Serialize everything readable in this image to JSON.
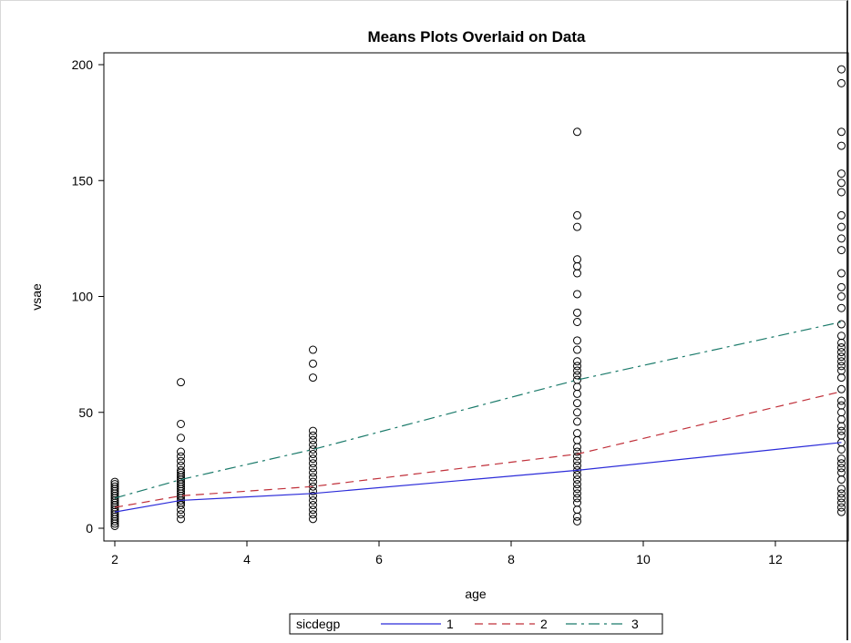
{
  "chart_data": {
    "type": "scatter",
    "title": "Means Plots Overlaid on Data",
    "xlabel": "age",
    "ylabel": "vsae",
    "xlim": [
      1.8,
      13.2
    ],
    "ylim": [
      -5,
      205
    ],
    "xticks": [
      2,
      4,
      6,
      8,
      10,
      12
    ],
    "yticks": [
      0,
      50,
      100,
      150,
      200
    ],
    "grid": false,
    "legend": {
      "title": "sicdegp",
      "placement": "bottom",
      "entries": [
        "1",
        "2",
        "3"
      ]
    },
    "observations": [
      {
        "x": 2,
        "y": [
          1,
          2,
          3,
          4,
          5,
          6,
          7,
          8,
          9,
          10,
          11,
          12,
          13,
          14,
          15,
          16,
          17,
          18,
          19,
          20
        ]
      },
      {
        "x": 3,
        "y": [
          4,
          6,
          8,
          10,
          11,
          12,
          13,
          14,
          15,
          16,
          17,
          18,
          19,
          20,
          21,
          22,
          23,
          24,
          25,
          27,
          29,
          31,
          33,
          39,
          45,
          63
        ]
      },
      {
        "x": 5,
        "y": [
          4,
          6,
          8,
          10,
          12,
          14,
          16,
          18,
          20,
          22,
          24,
          26,
          28,
          30,
          32,
          34,
          36,
          38,
          40,
          42,
          65,
          71,
          77
        ]
      },
      {
        "x": 9,
        "y": [
          3,
          5,
          8,
          11,
          13,
          15,
          17,
          19,
          21,
          23,
          25,
          27,
          29,
          31,
          33,
          35,
          38,
          41,
          46,
          50,
          54,
          58,
          61,
          64,
          66,
          68,
          70,
          72,
          77,
          81,
          89,
          93,
          101,
          110,
          113,
          116,
          130,
          135,
          171
        ]
      },
      {
        "x": 13,
        "y": [
          7,
          9,
          11,
          13,
          15,
          17,
          21,
          24,
          26,
          28,
          30,
          34,
          37,
          40,
          42,
          44,
          47,
          50,
          53,
          55,
          60,
          65,
          68,
          70,
          72,
          74,
          76,
          78,
          80,
          83,
          88,
          95,
          100,
          104,
          110,
          120,
          125,
          130,
          135,
          145,
          149,
          153,
          165,
          171,
          192,
          198
        ]
      }
    ],
    "series": [
      {
        "name": "1",
        "color": "#2b2bd9",
        "dash": "solid",
        "x": [
          2,
          3,
          5,
          9,
          13
        ],
        "y": [
          7,
          12,
          15,
          25,
          37
        ]
      },
      {
        "name": "2",
        "color": "#c0303a",
        "dash": "dashed",
        "x": [
          2,
          3,
          5,
          9,
          13
        ],
        "y": [
          9,
          14,
          18,
          32,
          59
        ]
      },
      {
        "name": "3",
        "color": "#1a7a6a",
        "dash": "dashdot",
        "x": [
          2,
          3,
          5,
          9,
          13
        ],
        "y": [
          13,
          21,
          34,
          64,
          89
        ]
      }
    ]
  }
}
